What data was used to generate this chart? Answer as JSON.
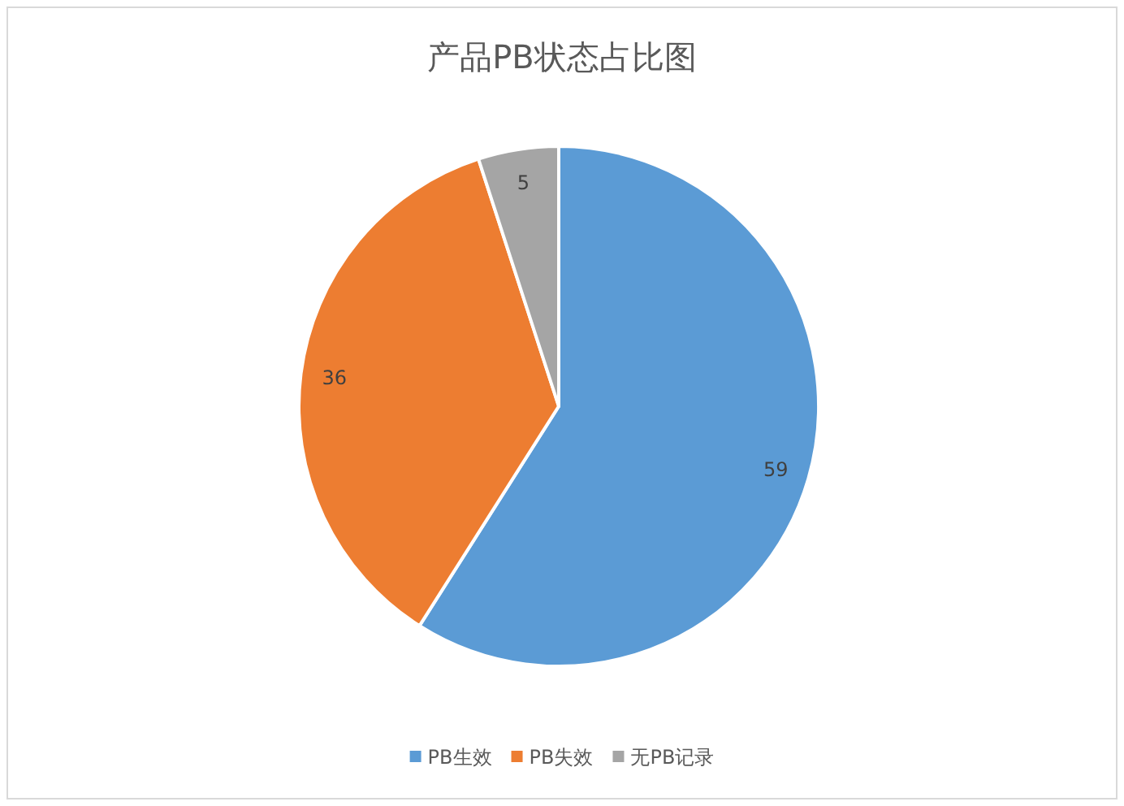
{
  "chart_data": {
    "type": "pie",
    "title": "产品PB状态占比图",
    "categories": [
      "PB生效",
      "PB失效",
      "无PB记录"
    ],
    "values": [
      59,
      36,
      5
    ],
    "colors": [
      "#5b9bd5",
      "#ed7d31",
      "#a5a5a5"
    ],
    "data_labels": true,
    "legend": "bottom"
  }
}
